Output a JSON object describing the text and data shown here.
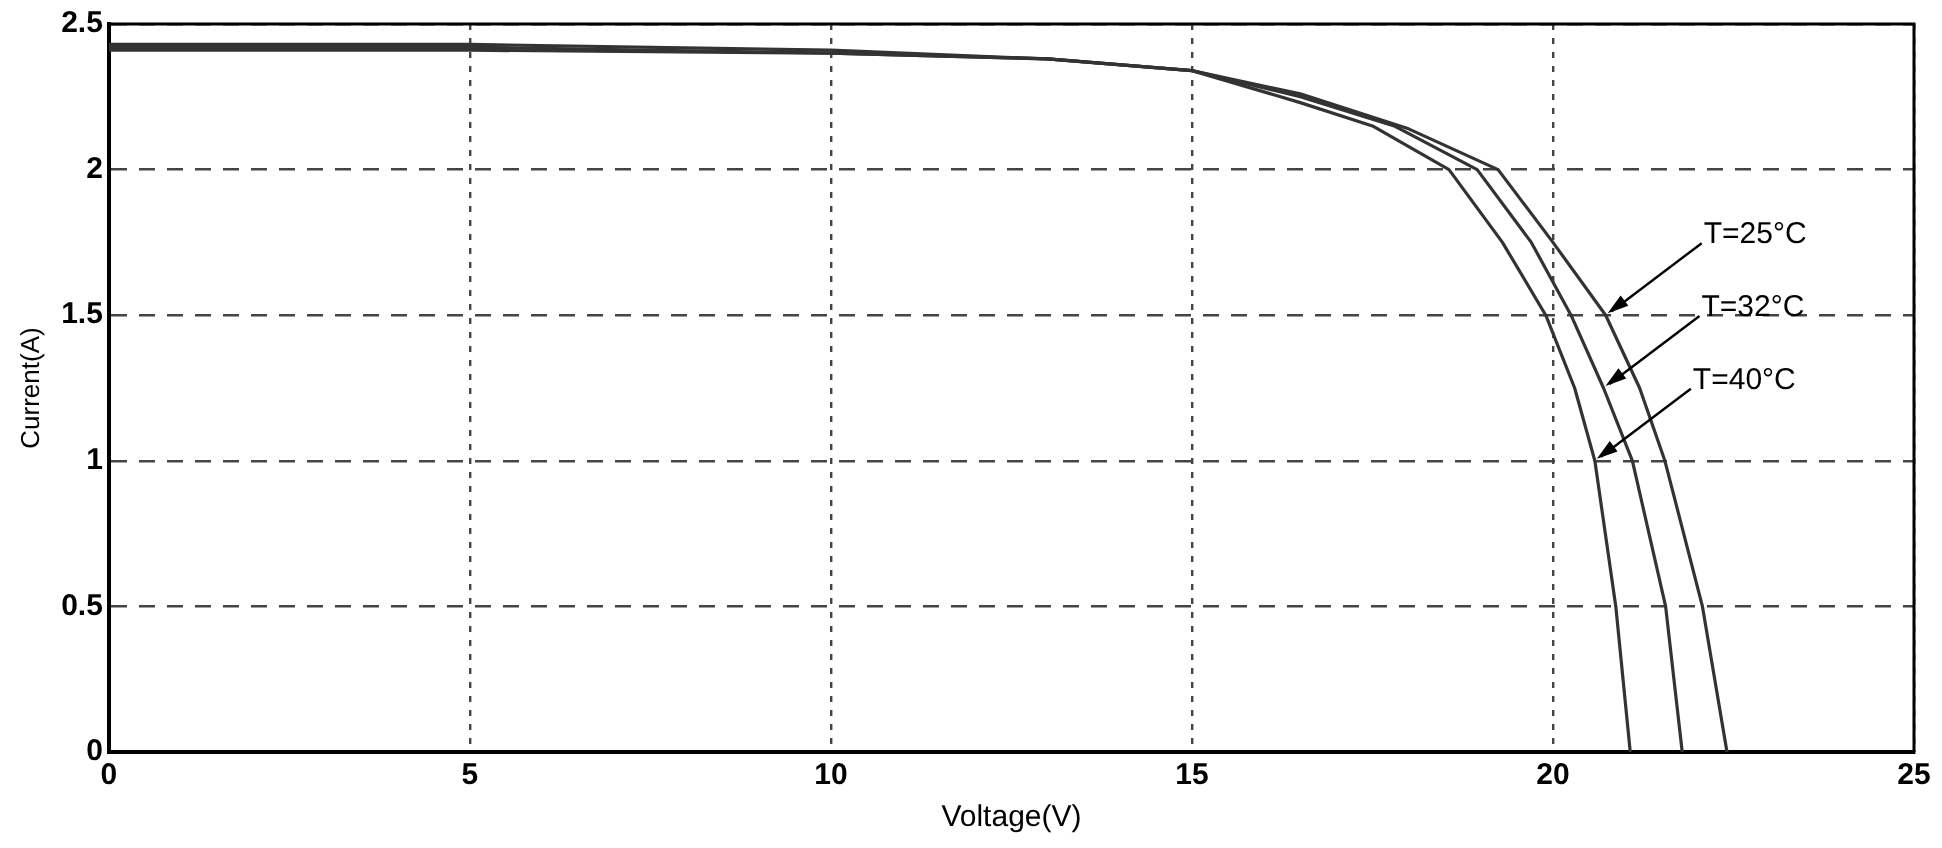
{
  "chart_data": {
    "type": "line",
    "xlabel": "Voltage(V)",
    "ylabel": "Current(A)",
    "xlim": [
      0,
      25
    ],
    "ylim": [
      0,
      2.5
    ],
    "xticks": [
      0,
      5,
      10,
      15,
      20,
      25
    ],
    "yticks": [
      0,
      0.5,
      1,
      1.5,
      2,
      2.5
    ],
    "grid": true,
    "legend": false,
    "marker": "none",
    "line_style": "solid",
    "series": [
      {
        "name": "T=25°C",
        "color": "#333333",
        "x": [
          0,
          5,
          10,
          13,
          15,
          16.5,
          18,
          19.24,
          20,
          20.73,
          21.2,
          21.55,
          22.07,
          22.41
        ],
        "values": [
          2.41,
          2.41,
          2.4,
          2.38,
          2.34,
          2.26,
          2.14,
          2,
          1.75,
          1.5,
          1.25,
          1,
          0.5,
          0
        ]
      },
      {
        "name": "T=32°C",
        "color": "#333333",
        "x": [
          0,
          5,
          10,
          13,
          15,
          16.5,
          17.8,
          18.95,
          19.7,
          20.25,
          20.7,
          21.1,
          21.56,
          21.79
        ],
        "values": [
          2.42,
          2.42,
          2.4,
          2.38,
          2.34,
          2.25,
          2.15,
          2,
          1.75,
          1.5,
          1.25,
          1,
          0.5,
          0
        ]
      },
      {
        "name": "T=40°C",
        "color": "#333333",
        "x": [
          0,
          5,
          10,
          13,
          15,
          16.5,
          17.5,
          18.56,
          19.3,
          19.9,
          20.3,
          20.58,
          20.87,
          21.07
        ],
        "values": [
          2.43,
          2.43,
          2.41,
          2.38,
          2.34,
          2.23,
          2.15,
          2,
          1.75,
          1.5,
          1.25,
          1,
          0.5,
          0
        ]
      }
    ]
  }
}
